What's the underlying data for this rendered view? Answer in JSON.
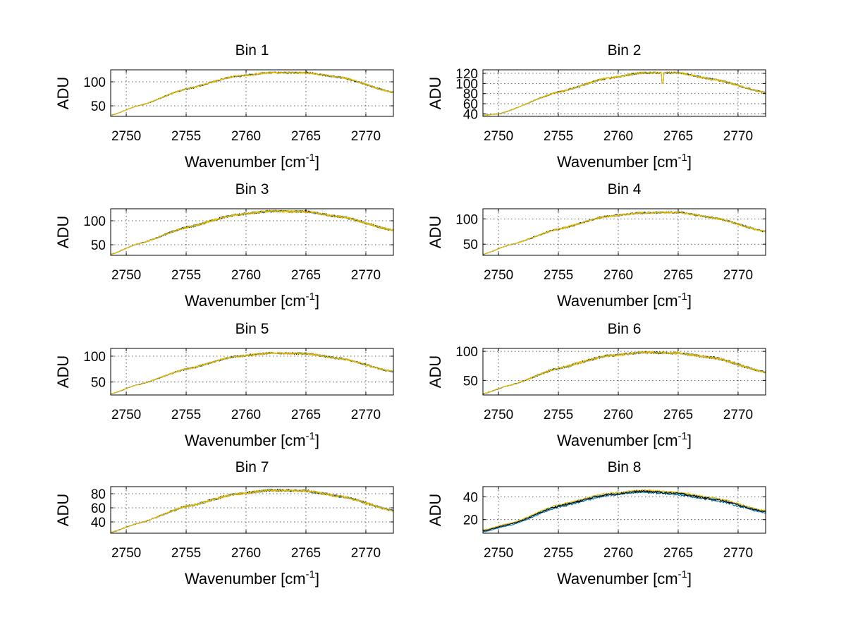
{
  "figure": {
    "background": "#ffffff",
    "grid": true,
    "x_tick_values": [
      2750,
      2755,
      2760,
      2765,
      2770
    ],
    "x_tick_labels": [
      "2750",
      "2755",
      "2760",
      "2765",
      "2770"
    ],
    "xlim": [
      2748.7,
      2772.3
    ],
    "series_colors": [
      "#000000",
      "#00689f",
      "#26c0e8",
      "#e6b800",
      "#f5c400"
    ]
  },
  "chart_data": [
    {
      "type": "line",
      "title": "Bin 1",
      "xlabel_main": "Wavenumber [cm",
      "xlabel_sup": "-1",
      "xlabel_close": "]",
      "ylabel": "ADU",
      "xlim": [
        2748.7,
        2772.3
      ],
      "ylim": [
        28,
        125
      ],
      "yticks": [
        50,
        100
      ],
      "ytick_labels": [
        "50",
        "100"
      ],
      "profile": {
        "x": [
          2748.7,
          2751,
          2755,
          2759,
          2762,
          2765,
          2768,
          2772.3
        ],
        "y": [
          30,
          50,
          85,
          111,
          119,
          119,
          109,
          78
        ]
      },
      "noise": 2,
      "series_count": 4,
      "spike": null
    },
    {
      "type": "line",
      "title": "Bin 2",
      "xlabel_main": "Wavenumber [cm",
      "xlabel_sup": "-1",
      "xlabel_close": "]",
      "ylabel": "ADU",
      "xlim": [
        2748.7,
        2772.3
      ],
      "ylim": [
        35,
        127
      ],
      "yticks": [
        40,
        60,
        80,
        100,
        120
      ],
      "ytick_labels": [
        "40",
        "60",
        "80",
        "100",
        "120"
      ],
      "profile": {
        "x": [
          2748.7,
          2750,
          2755,
          2759,
          2762,
          2765,
          2768,
          2772.3
        ],
        "y": [
          37,
          40,
          83,
          110,
          121,
          121,
          108,
          82
        ]
      },
      "noise": 2,
      "series_count": 4,
      "spike": {
        "x": 2763.7,
        "depth": 20
      }
    },
    {
      "type": "line",
      "title": "Bin 3",
      "xlabel_main": "Wavenumber [cm",
      "xlabel_sup": "-1",
      "xlabel_close": "]",
      "ylabel": "ADU",
      "xlim": [
        2748.7,
        2772.3
      ],
      "ylim": [
        28,
        125
      ],
      "yticks": [
        50,
        100
      ],
      "ytick_labels": [
        "50",
        "100"
      ],
      "profile": {
        "x": [
          2748.7,
          2751,
          2755,
          2759,
          2762,
          2765,
          2768,
          2772.3
        ],
        "y": [
          30,
          52,
          86,
          112,
          120,
          119,
          108,
          80
        ]
      },
      "noise": 2.5,
      "series_count": 4,
      "spike": null
    },
    {
      "type": "line",
      "title": "Bin 4",
      "xlabel_main": "Wavenumber [cm",
      "xlabel_sup": "-1",
      "xlabel_close": "]",
      "ylabel": "ADU",
      "xlim": [
        2748.7,
        2772.3
      ],
      "ylim": [
        28,
        120
      ],
      "yticks": [
        50,
        100
      ],
      "ytick_labels": [
        "50",
        "100"
      ],
      "profile": {
        "x": [
          2748.7,
          2751,
          2755,
          2759,
          2762,
          2765,
          2768,
          2772.3
        ],
        "y": [
          30,
          49,
          80,
          105,
          112,
          113,
          102,
          75
        ]
      },
      "noise": 2,
      "series_count": 4,
      "spike": null
    },
    {
      "type": "line",
      "title": "Bin 5",
      "xlabel_main": "Wavenumber [cm",
      "xlabel_sup": "-1",
      "xlabel_close": "]",
      "ylabel": "ADU",
      "xlim": [
        2748.7,
        2772.3
      ],
      "ylim": [
        25,
        115
      ],
      "yticks": [
        50,
        100
      ],
      "ytick_labels": [
        "50",
        "100"
      ],
      "profile": {
        "x": [
          2748.7,
          2751,
          2755,
          2759,
          2762,
          2765,
          2768,
          2772.3
        ],
        "y": [
          27,
          45,
          75,
          99,
          106,
          105,
          95,
          70
        ]
      },
      "noise": 2,
      "series_count": 4,
      "spike": null
    },
    {
      "type": "line",
      "title": "Bin 6",
      "xlabel_main": "Wavenumber [cm",
      "xlabel_sup": "-1",
      "xlabel_close": "]",
      "ylabel": "ADU",
      "xlim": [
        2748.7,
        2772.3
      ],
      "ylim": [
        25,
        105
      ],
      "yticks": [
        50,
        100
      ],
      "ytick_labels": [
        "50",
        "100"
      ],
      "profile": {
        "x": [
          2748.7,
          2751,
          2755,
          2759,
          2762,
          2765,
          2768,
          2772.3
        ],
        "y": [
          27,
          42,
          71,
          92,
          98,
          97,
          89,
          64
        ]
      },
      "noise": 2.2,
      "series_count": 4,
      "spike": null
    },
    {
      "type": "line",
      "title": "Bin 7",
      "xlabel_main": "Wavenumber [cm",
      "xlabel_sup": "-1",
      "xlabel_close": "]",
      "ylabel": "ADU",
      "xlim": [
        2748.7,
        2772.3
      ],
      "ylim": [
        24,
        90
      ],
      "yticks": [
        40,
        60,
        80
      ],
      "ytick_labels": [
        "40",
        "60",
        "80"
      ],
      "profile": {
        "x": [
          2748.7,
          2751,
          2755,
          2759,
          2762,
          2765,
          2768,
          2772.3
        ],
        "y": [
          25,
          38,
          62,
          79,
          85,
          84,
          76,
          56
        ]
      },
      "noise": 1.8,
      "series_count": 4,
      "spike": null
    },
    {
      "type": "line",
      "title": "Bin 8",
      "xlabel_main": "Wavenumber [cm",
      "xlabel_sup": "-1",
      "xlabel_close": "]",
      "ylabel": "ADU",
      "xlim": [
        2748.7,
        2772.3
      ],
      "ylim": [
        8,
        49
      ],
      "yticks": [
        20,
        40
      ],
      "ytick_labels": [
        "20",
        "40"
      ],
      "profile": {
        "x": [
          2748.7,
          2751,
          2755,
          2759,
          2762,
          2765,
          2768,
          2772.3
        ],
        "y": [
          10,
          16,
          32,
          42,
          45,
          43,
          38,
          27
        ]
      },
      "noise": 0.9,
      "series_count": 4,
      "spike": null,
      "band": true
    }
  ]
}
